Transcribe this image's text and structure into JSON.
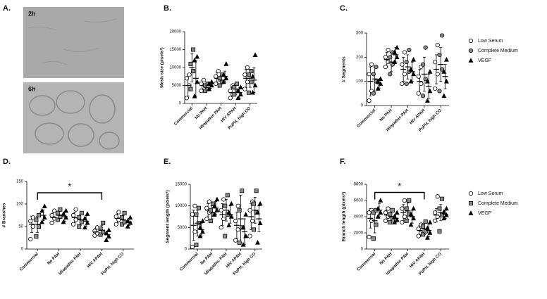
{
  "panel_a": {
    "label": "A.",
    "images": [
      {
        "label": "2h"
      },
      {
        "label": "6h"
      }
    ]
  },
  "chart_data": [
    {
      "type": "dot",
      "panel_label": "B.",
      "ylabel": "Mesh size (pixels²)",
      "categories": [
        "Commercial",
        "No PAH",
        "Idiopathic PAH",
        "HIV APAH",
        "PoPH, high CO"
      ],
      "ylim": [
        0,
        20000
      ],
      "yticks": [
        0,
        5000,
        10000,
        15000,
        20000
      ],
      "series": [
        {
          "color": "#ffffff",
          "marker": "circle",
          "values": [
            5000,
            5000,
            7000,
            3000,
            7000
          ],
          "errors": [
            3000,
            1500,
            1500,
            1500,
            2500
          ],
          "points": [
            [
              1500,
              5000,
              7000,
              8000
            ],
            [
              3500,
              4500,
              5500,
              6500
            ],
            [
              5500,
              6500,
              7500,
              9000
            ],
            [
              1500,
              2500,
              3500,
              5000
            ],
            [
              4000,
              6000,
              8000,
              10000
            ]
          ]
        },
        {
          "color": "#8c8c8c",
          "marker": "square",
          "values": [
            10000,
            4500,
            6500,
            4000,
            7000
          ],
          "errors": [
            4000,
            800,
            1200,
            1500,
            2500
          ],
          "points": [
            [
              4000,
              9000,
              11000,
              15000
            ],
            [
              3500,
              4000,
              5000,
              5500
            ],
            [
              5000,
              6000,
              7000,
              8000
            ],
            [
              2500,
              3500,
              4500,
              5500
            ],
            [
              3000,
              6000,
              8000,
              9000
            ]
          ]
        },
        {
          "color": "#000000",
          "marker": "triangle",
          "values": [
            7000,
            5000,
            7500,
            3000,
            6500
          ],
          "errors": [
            5000,
            800,
            1500,
            1500,
            3500
          ],
          "points": [
            [
              2000,
              6000,
              12000,
              13000
            ],
            [
              4000,
              5000,
              5500,
              6000
            ],
            [
              6000,
              7000,
              8000,
              11000
            ],
            [
              1500,
              2500,
              3500,
              4500
            ],
            [
              3000,
              5000,
              7500,
              13500
            ]
          ]
        }
      ]
    },
    {
      "type": "dot",
      "panel_label": "C.",
      "ylabel": "# Segments",
      "categories": [
        "Commercial",
        "No PAH",
        "Idiopathic PAH",
        "HIV APAH",
        "PoPH, high CO"
      ],
      "ylim": [
        0,
        300
      ],
      "yticks": [
        0,
        100,
        200,
        300
      ],
      "legend": "right",
      "series": [
        {
          "name": "Low Serum",
          "color": "#ffffff",
          "marker": "circle",
          "values": [
            100,
            190,
            150,
            100,
            150
          ],
          "errors": [
            60,
            30,
            50,
            50,
            60
          ],
          "points": [
            [
              20,
              60,
              130,
              170
            ],
            [
              160,
              180,
              200,
              230
            ],
            [
              90,
              130,
              170,
              220
            ],
            [
              50,
              90,
              120,
              160
            ],
            [
              70,
              130,
              180,
              250
            ]
          ]
        },
        {
          "name": "Complete Medium",
          "color": "#8c8c8c",
          "marker": "circle",
          "values": [
            110,
            180,
            160,
            130,
            170
          ],
          "errors": [
            50,
            40,
            50,
            70,
            70
          ],
          "points": [
            [
              50,
              100,
              130,
              160
            ],
            [
              130,
              170,
              200,
              220
            ],
            [
              90,
              140,
              180,
              230
            ],
            [
              40,
              110,
              170,
              240
            ],
            [
              60,
              150,
              210,
              290
            ]
          ]
        },
        {
          "name": "VEGF",
          "color": "#000000",
          "marker": "triangle",
          "values": [
            90,
            210,
            140,
            80,
            120
          ],
          "errors": [
            20,
            30,
            40,
            50,
            50
          ],
          "points": [
            [
              70,
              90,
              100,
              110
            ],
            [
              180,
              200,
              220,
              240
            ],
            [
              100,
              130,
              150,
              190
            ],
            [
              20,
              60,
              100,
              140
            ],
            [
              40,
              100,
              140,
              190
            ]
          ]
        }
      ]
    },
    {
      "type": "dot",
      "panel_label": "D.",
      "ylabel": "# Branches",
      "categories": [
        "Commercial",
        "No PAH",
        "Idiopathic PAH",
        "HIV APAH",
        "PoPH, high CO"
      ],
      "ylim": [
        0,
        150
      ],
      "yticks": [
        0,
        50,
        100,
        150
      ],
      "significance": {
        "from": 0,
        "to": 3,
        "value": 125,
        "label": "*"
      },
      "series": [
        {
          "color": "#ffffff",
          "marker": "circle",
          "values": [
            55,
            70,
            70,
            38,
            68
          ],
          "errors": [
            18,
            12,
            12,
            8,
            10
          ],
          "points": [
            [
              22,
              50,
              62,
              70
            ],
            [
              58,
              68,
              75,
              85
            ],
            [
              55,
              65,
              75,
              88
            ],
            [
              30,
              35,
              40,
              48
            ],
            [
              55,
              65,
              72,
              82
            ]
          ]
        },
        {
          "color": "#8c8c8c",
          "marker": "square",
          "values": [
            55,
            75,
            65,
            42,
            65
          ],
          "errors": [
            18,
            10,
            12,
            10,
            10
          ],
          "points": [
            [
              28,
              50,
              65,
              75
            ],
            [
              65,
              72,
              80,
              88
            ],
            [
              50,
              60,
              70,
              80
            ],
            [
              32,
              38,
              45,
              58
            ],
            [
              55,
              60,
              70,
              80
            ]
          ]
        },
        {
          "color": "#000000",
          "marker": "triangle",
          "values": [
            75,
            72,
            62,
            32,
            60
          ],
          "errors": [
            12,
            10,
            12,
            8,
            8
          ],
          "points": [
            [
              60,
              70,
              85,
              95
            ],
            [
              60,
              70,
              78,
              85
            ],
            [
              48,
              58,
              68,
              78
            ],
            [
              20,
              28,
              35,
              42
            ],
            [
              50,
              58,
              62,
              70
            ]
          ]
        }
      ]
    },
    {
      "type": "dot",
      "panel_label": "E.",
      "ylabel": "Segment length (pixels²)",
      "categories": [
        "Commercial",
        "No PAH",
        "Idiopathic PAH",
        "HIV APAH",
        "PoPH, high CO"
      ],
      "ylim": [
        0,
        15000
      ],
      "yticks": [
        0,
        5000,
        10000,
        15000
      ],
      "series": [
        {
          "color": "#ffffff",
          "marker": "circle",
          "values": [
            5500,
            9000,
            8000,
            5500,
            7500
          ],
          "errors": [
            3500,
            1500,
            2500,
            3000,
            3000
          ],
          "points": [
            [
              500,
              4000,
              8000,
              10000
            ],
            [
              7000,
              8500,
              9500,
              11000
            ],
            [
              5000,
              7000,
              9000,
              11500
            ],
            [
              2000,
              4500,
              6500,
              10000
            ],
            [
              3000,
              6500,
              9000,
              11000
            ]
          ]
        },
        {
          "color": "#8c8c8c",
          "marker": "square",
          "values": [
            6000,
            8500,
            9000,
            7000,
            9000
          ],
          "errors": [
            3000,
            1500,
            2500,
            5500,
            3000
          ],
          "points": [
            [
              1000,
              6000,
              8000,
              9500
            ],
            [
              6500,
              8000,
              9000,
              10500
            ],
            [
              3000,
              8000,
              10000,
              12500
            ],
            [
              1500,
              5000,
              9000,
              13500
            ],
            [
              4500,
              8500,
              10500,
              13500
            ]
          ]
        },
        {
          "color": "#000000",
          "marker": "triangle",
          "values": [
            4500,
            9500,
            8000,
            4000,
            7000
          ],
          "errors": [
            1500,
            1500,
            2000,
            3000,
            3000
          ],
          "points": [
            [
              3000,
              4000,
              5000,
              6500
            ],
            [
              8000,
              9000,
              10000,
              11500
            ],
            [
              5500,
              7500,
              8500,
              10500
            ],
            [
              1000,
              3000,
              5000,
              8000
            ],
            [
              1500,
              6000,
              8500,
              10500
            ]
          ]
        }
      ]
    },
    {
      "type": "dot",
      "panel_label": "F.",
      "ylabel": "Branch length (pixels²)",
      "categories": [
        "Commercial",
        "No PAH",
        "Idiopathic PAH",
        "HIV APAH",
        "PoPH, high CO"
      ],
      "ylim": [
        0,
        8000
      ],
      "yticks": [
        0,
        2000,
        4000,
        6000,
        8000
      ],
      "legend": "right",
      "significance": {
        "from": 0,
        "to": 3,
        "value": 7000,
        "label": "*"
      },
      "series": [
        {
          "name": "Low Serum",
          "color": "#ffffff",
          "marker": "circle",
          "values": [
            3800,
            4200,
            4500,
            2300,
            4200
          ],
          "errors": [
            1200,
            600,
            1000,
            600,
            800
          ],
          "points": [
            [
              1500,
              3500,
              4500,
              4800
            ],
            [
              3500,
              4000,
              4500,
              5000
            ],
            [
              3300,
              4000,
              5000,
              6000
            ],
            [
              1600,
              2000,
              2500,
              3000
            ],
            [
              3500,
              4000,
              4500,
              6500
            ]
          ]
        },
        {
          "name": "Complete Medium",
          "color": "#8c8c8c",
          "marker": "square",
          "values": [
            3500,
            4000,
            4700,
            2500,
            4500
          ],
          "errors": [
            1500,
            600,
            1000,
            700,
            1000
          ],
          "points": [
            [
              1300,
              3000,
              4500,
              4800
            ],
            [
              3300,
              3800,
              4300,
              4800
            ],
            [
              3500,
              4300,
              5000,
              6000
            ],
            [
              1800,
              2200,
              2800,
              3400
            ],
            [
              2200,
              4200,
              5000,
              6200
            ]
          ]
        },
        {
          "name": "VEGF",
          "color": "#000000",
          "marker": "triangle",
          "values": [
            4800,
            3800,
            4000,
            2300,
            4300
          ],
          "errors": [
            800,
            500,
            800,
            800,
            500
          ],
          "points": [
            [
              4000,
              4500,
              5000,
              6000
            ],
            [
              3300,
              3600,
              4000,
              4500
            ],
            [
              3000,
              3800,
              4300,
              5000
            ],
            [
              1400,
              2000,
              2600,
              3300
            ],
            [
              3800,
              4200,
              4600,
              5000
            ]
          ]
        }
      ]
    }
  ]
}
